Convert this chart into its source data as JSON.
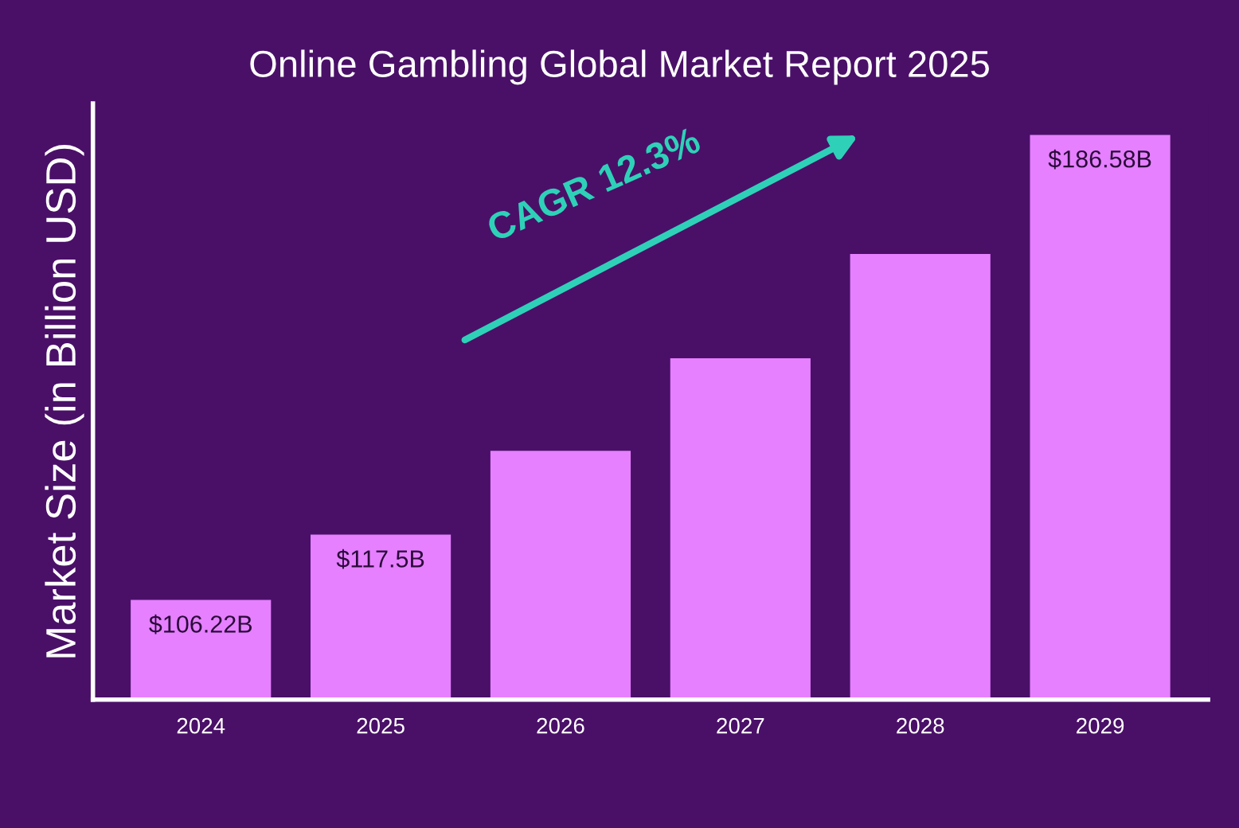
{
  "chart_data": {
    "type": "bar",
    "title": "Online Gambling Global Market Report 2025",
    "ylabel": "Market Size (in Billion USD)",
    "categories": [
      "2024",
      "2025",
      "2026",
      "2027",
      "2028",
      "2029"
    ],
    "values": [
      106.22,
      117.5,
      132,
      148,
      166,
      186.58
    ],
    "ylim": [
      89,
      192
    ],
    "value_labels": [
      "$106.22B",
      "$117.5B",
      null,
      null,
      null,
      "$186.58B"
    ],
    "color": "#e680ff",
    "annotations": [
      "CAGR 12.3%"
    ],
    "grid": false,
    "legend": false
  }
}
